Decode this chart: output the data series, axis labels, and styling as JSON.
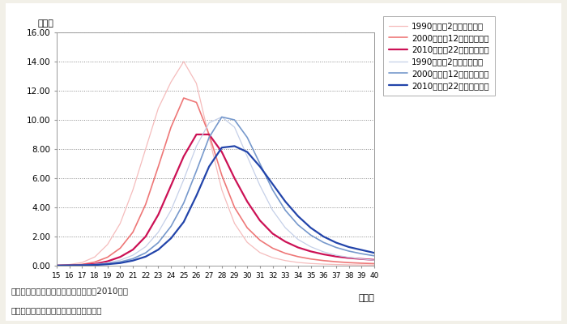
{
  "ages": [
    15,
    16,
    17,
    18,
    19,
    20,
    21,
    22,
    23,
    24,
    25,
    26,
    27,
    28,
    29,
    30,
    31,
    32,
    33,
    34,
    35,
    36,
    37,
    38,
    39,
    40
  ],
  "female_1990": [
    0.02,
    0.08,
    0.22,
    0.6,
    1.45,
    2.9,
    5.2,
    8.0,
    10.8,
    12.6,
    14.0,
    12.5,
    8.8,
    5.2,
    2.9,
    1.6,
    0.9,
    0.55,
    0.35,
    0.22,
    0.15,
    0.11,
    0.08,
    0.06,
    0.05,
    0.04
  ],
  "female_2000": [
    0.01,
    0.03,
    0.09,
    0.25,
    0.58,
    1.2,
    2.3,
    4.2,
    6.8,
    9.5,
    11.5,
    11.2,
    9.0,
    6.2,
    4.0,
    2.6,
    1.75,
    1.2,
    0.85,
    0.62,
    0.46,
    0.35,
    0.27,
    0.21,
    0.17,
    0.14
  ],
  "female_2010": [
    0.01,
    0.02,
    0.05,
    0.12,
    0.3,
    0.6,
    1.1,
    2.0,
    3.5,
    5.5,
    7.5,
    9.0,
    9.0,
    7.8,
    6.0,
    4.4,
    3.1,
    2.2,
    1.65,
    1.25,
    0.98,
    0.78,
    0.63,
    0.53,
    0.46,
    0.4
  ],
  "male_1990": [
    0.01,
    0.02,
    0.04,
    0.09,
    0.2,
    0.38,
    0.72,
    1.3,
    2.3,
    3.8,
    5.9,
    8.2,
    9.8,
    10.2,
    9.5,
    7.5,
    5.5,
    3.8,
    2.6,
    1.8,
    1.3,
    0.95,
    0.72,
    0.57,
    0.46,
    0.38
  ],
  "male_2000": [
    0.01,
    0.02,
    0.03,
    0.07,
    0.14,
    0.26,
    0.48,
    0.88,
    1.58,
    2.7,
    4.3,
    6.5,
    8.8,
    10.2,
    10.0,
    8.8,
    7.0,
    5.2,
    3.8,
    2.8,
    2.1,
    1.6,
    1.25,
    1.0,
    0.82,
    0.68
  ],
  "male_2010": [
    0.01,
    0.02,
    0.03,
    0.05,
    0.1,
    0.18,
    0.35,
    0.62,
    1.1,
    1.88,
    3.0,
    4.8,
    6.8,
    8.1,
    8.2,
    7.8,
    6.8,
    5.6,
    4.4,
    3.4,
    2.6,
    2.0,
    1.58,
    1.28,
    1.08,
    0.88
  ],
  "colors": {
    "female_1990": "#F5BCBC",
    "female_2000": "#EE7777",
    "female_2010": "#CC1155",
    "male_1990": "#C5D0E8",
    "male_2000": "#7799CC",
    "male_2010": "#2244AA"
  },
  "linewidths": {
    "female_1990": 0.9,
    "female_2000": 1.2,
    "female_2010": 1.6,
    "male_1990": 0.9,
    "male_2000": 1.2,
    "male_2010": 1.6
  },
  "legend_labels": [
    "1990（平成2）年【女性】",
    "2000（平成12）年【女性】",
    "2010（平成22）年【女性】",
    "1990（平成2）年【男性】",
    "2000（平成12）年【男性】",
    "2010（平成22）年【男性】"
  ],
  "ylabel_text": "（％）",
  "xlabel_text": "（歳）",
  "ylim": [
    0,
    16.0
  ],
  "yticks": [
    0.0,
    2.0,
    4.0,
    6.0,
    8.0,
    10.0,
    12.0,
    14.0,
    16.0
  ],
  "xticks": [
    15,
    16,
    17,
    18,
    19,
    20,
    21,
    22,
    23,
    24,
    25,
    26,
    27,
    28,
    29,
    30,
    31,
    32,
    33,
    34,
    35,
    36,
    37,
    38,
    39,
    40
  ],
  "source_text": "資料：厚生労働省「人口動態統計」（2010年）",
  "note_text": "　注：各届出年に結婚生活に入ったもの",
  "background_color": "#F2F0E8",
  "plot_bg_color": "#FFFFFF"
}
